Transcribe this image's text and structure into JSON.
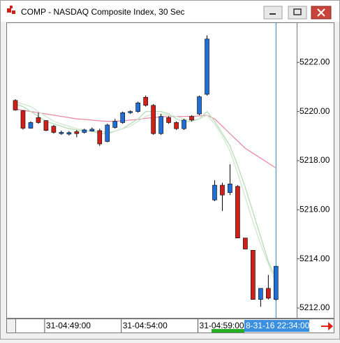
{
  "chart_data": {
    "type": "candlestick",
    "title": "COMP - NASDAQ Composite Index, 30 Sec",
    "categories": [
      null,
      null,
      null,
      null,
      "31-04:49:00",
      null,
      null,
      null,
      null,
      null,
      null,
      null,
      null,
      null,
      "31-04:54:00",
      null,
      null,
      null,
      null,
      null,
      null,
      null,
      null,
      null,
      "31-04:59:00",
      null,
      null,
      null,
      null,
      null,
      null,
      null,
      null,
      null,
      null
    ],
    "open": [
      5220.45,
      5220.03,
      5219.32,
      5219.75,
      5219.63,
      5219.4,
      5219.1,
      5219.08,
      5219.18,
      5219.15,
      5219.2,
      5219.22,
      5218.78,
      5219.35,
      5219.55,
      5219.95,
      5220.0,
      5220.58,
      5220.25,
      5219.1,
      5219.75,
      5219.55,
      5219.3,
      5219.8,
      5219.9,
      5220.7,
      5216.4,
      5217.0,
      5216.7,
      5216.95,
      5214.85,
      5214.35,
      5212.35,
      5212.8,
      5212.35
    ],
    "high": [
      5220.5,
      5220.05,
      5219.6,
      5219.95,
      5219.65,
      5219.45,
      5219.22,
      5219.2,
      5219.25,
      5219.3,
      5219.35,
      5219.3,
      5219.5,
      5219.7,
      5220.0,
      5220.05,
      5220.4,
      5220.65,
      5220.3,
      5219.9,
      5219.8,
      5219.6,
      5219.7,
      5219.85,
      5220.65,
      5223.1,
      5217.2,
      5217.1,
      5217.85,
      5217.0,
      5214.85,
      5214.35,
      5212.8,
      5213.35,
      5213.7
    ],
    "low": [
      5220.03,
      5219.26,
      5219.3,
      5219.5,
      5219.2,
      5219.1,
      5219.05,
      5219.02,
      5218.95,
      5219.1,
      5219.18,
      5218.6,
      5218.75,
      5219.3,
      5219.5,
      5219.9,
      5219.95,
      5220.2,
      5219.05,
      5219.05,
      5219.5,
      5219.25,
      5219.25,
      5219.6,
      5219.85,
      5220.65,
      5216.35,
      5215.95,
      5216.6,
      5214.85,
      5214.4,
      5212.35,
      5212.05,
      5212.35,
      5212.3
    ],
    "close": [
      5220.06,
      5219.32,
      5219.55,
      5219.55,
      5219.23,
      5219.15,
      5219.15,
      5219.14,
      5219.1,
      5219.25,
      5219.28,
      5218.68,
      5219.45,
      5219.6,
      5219.95,
      5220.0,
      5220.35,
      5220.25,
      5219.1,
      5219.8,
      5219.55,
      5219.3,
      5219.65,
      5219.65,
      5220.6,
      5222.95,
      5217.0,
      5216.6,
      5217.05,
      5214.85,
      5214.4,
      5212.35,
      5212.8,
      5212.4,
      5213.7
    ],
    "up_color": "#1f6fd6",
    "down_color": "#d0201a",
    "lines": [
      {
        "color": "#e88aa6",
        "values": [
          5220.1,
          5220.05,
          5220.0,
          5219.95,
          5219.9,
          5219.85,
          5219.8,
          5219.75,
          5219.7,
          5219.68,
          5219.65,
          5219.62,
          5219.6,
          5219.6,
          5219.62,
          5219.65,
          5219.68,
          5219.72,
          5219.75,
          5219.78,
          5219.8,
          5219.8,
          5219.8,
          5219.8,
          5219.82,
          5219.85,
          5219.7,
          5219.4,
          5219.1,
          5218.8,
          5218.5,
          5218.3,
          5218.1,
          5217.9,
          5217.7
        ]
      },
      {
        "color": "#b6dcb6",
        "values": [
          5220.3,
          5220.2,
          5220.0,
          5219.8,
          5219.6,
          5219.5,
          5219.4,
          5219.3,
          5219.25,
          5219.2,
          5219.2,
          5219.1,
          5219.1,
          5219.2,
          5219.3,
          5219.5,
          5219.7,
          5220.0,
          5220.0,
          5220.0,
          5219.9,
          5219.7,
          5219.6,
          5219.6,
          5219.7,
          5220.0,
          5219.6,
          5219.1,
          5218.6,
          5217.8,
          5216.9,
          5215.9,
          5214.9,
          5213.9,
          5213.2
        ]
      },
      {
        "color": "#cfe8cf",
        "values": [
          5220.4,
          5220.3,
          5220.2,
          5220.0,
          5219.8,
          5219.6,
          5219.5,
          5219.4,
          5219.3,
          5219.25,
          5219.2,
          5219.2,
          5219.15,
          5219.2,
          5219.3,
          5219.4,
          5219.6,
          5219.8,
          5219.9,
          5219.9,
          5219.85,
          5219.8,
          5219.7,
          5219.65,
          5219.7,
          5219.85,
          5219.5,
          5219.0,
          5218.4,
          5217.5,
          5216.5,
          5215.5,
          5214.6,
          5213.8,
          5213.0
        ]
      }
    ],
    "ylim": [
      5211.6,
      5223.6
    ],
    "yticks": [
      {
        "value": 5212,
        "label": "5212.00"
      },
      {
        "value": 5214,
        "label": "5214.00"
      },
      {
        "value": 5216,
        "label": "5216.00"
      },
      {
        "value": 5218,
        "label": "5218.00"
      },
      {
        "value": 5220,
        "label": "5220.00"
      },
      {
        "value": 5222,
        "label": "5222.00"
      }
    ],
    "cursor_label": "8-31-16 22:34:00"
  }
}
